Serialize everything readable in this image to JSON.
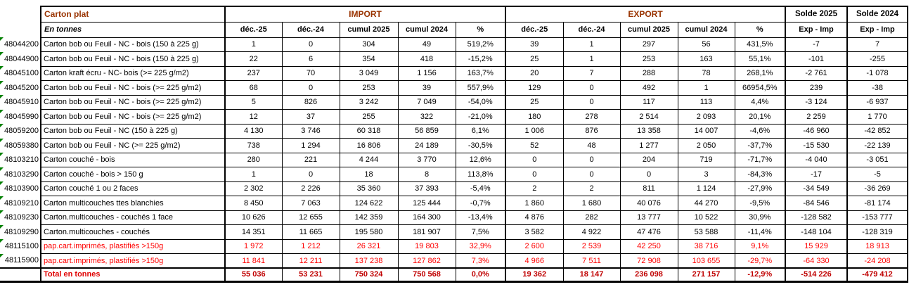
{
  "palette": {
    "header_text": "#993300",
    "red_row_text": "#FF0000",
    "total_label_text": "#E00000",
    "total_value_text": "#C00000",
    "border": "#000000",
    "error_indicator_green": "#008000",
    "background": "#FFFFFF"
  },
  "table": {
    "title": "Carton plat",
    "subtitle": "En tonnes",
    "sections": {
      "import": "IMPORT",
      "export": "EXPORT",
      "solde2025": "Solde 2025",
      "solde2024": "Solde 2024"
    },
    "sub_headers": {
      "dec25": "déc.-25",
      "dec24": "déc.-24",
      "cumul2025": "cumul 2025",
      "cumul2024": "cumul 2024",
      "pct": "%",
      "exp_imp": "Exp - Imp"
    },
    "rows": [
      {
        "code": "48044200",
        "label": "Carton bob ou Feuil - NC - bois (150 à 225 g)",
        "import": [
          "1",
          "0",
          "304",
          "49",
          "519,2%"
        ],
        "export": [
          "39",
          "1",
          "297",
          "56",
          "431,5%"
        ],
        "solde2025": "-7",
        "solde2024": "7",
        "style": "normal"
      },
      {
        "code": "48044900",
        "label": "Carton bob ou Feuil - NC - bois (150 à 225 g)",
        "import": [
          "22",
          "6",
          "354",
          "418",
          "-15,2%"
        ],
        "export": [
          "25",
          "1",
          "253",
          "163",
          "55,1%"
        ],
        "solde2025": "-101",
        "solde2024": "-255",
        "style": "normal"
      },
      {
        "code": "48045100",
        "label": "Carton kraft écru - NC- bois  (>= 225 g/m2)",
        "import": [
          "237",
          "70",
          "3 049",
          "1 156",
          "163,7%"
        ],
        "export": [
          "20",
          "7",
          "288",
          "78",
          "268,1%"
        ],
        "solde2025": "-2 761",
        "solde2024": "-1 078",
        "style": "normal"
      },
      {
        "code": "48045200",
        "label": "Carton bob ou Feuil - NC - bois (>= 225 g/m2)",
        "import": [
          "68",
          "0",
          "253",
          "39",
          "557,9%"
        ],
        "export": [
          "129",
          "0",
          "492",
          "1",
          "66954,5%"
        ],
        "solde2025": "239",
        "solde2024": "-38",
        "style": "normal"
      },
      {
        "code": "48045910",
        "label": "Carton bob ou Feuil - NC - bois (>= 225 g/m2)",
        "import": [
          "5",
          "826",
          "3 242",
          "7 049",
          "-54,0%"
        ],
        "export": [
          "25",
          "0",
          "117",
          "113",
          "4,4%"
        ],
        "solde2025": "-3 124",
        "solde2024": "-6 937",
        "style": "normal"
      },
      {
        "code": "48045990",
        "label": "Carton bob ou Feuil - NC - bois (>= 225 g/m2)",
        "import": [
          "12",
          "37",
          "255",
          "322",
          "-21,0%"
        ],
        "export": [
          "180",
          "278",
          "2 514",
          "2 093",
          "20,1%"
        ],
        "solde2025": "2 259",
        "solde2024": "1 770",
        "style": "normal"
      },
      {
        "code": "48059200",
        "label": "Carton bob ou Feuil - NC (150 à 225 g)",
        "import": [
          "4 130",
          "3 746",
          "60 318",
          "56 859",
          "6,1%"
        ],
        "export": [
          "1 006",
          "876",
          "13 358",
          "14 007",
          "-4,6%"
        ],
        "solde2025": "-46 960",
        "solde2024": "-42 852",
        "style": "normal"
      },
      {
        "code": "48059380",
        "label": "Carton bob ou Feuil - NC (>= 225 g/m2)",
        "import": [
          "738",
          "1 294",
          "16 806",
          "24 189",
          "-30,5%"
        ],
        "export": [
          "52",
          "48",
          "1 277",
          "2 050",
          "-37,7%"
        ],
        "solde2025": "-15 530",
        "solde2024": "-22 139",
        "style": "normal"
      },
      {
        "code": "48103210",
        "label": "Carton couché - bois",
        "import": [
          "280",
          "221",
          "4 244",
          "3 770",
          "12,6%"
        ],
        "export": [
          "0",
          "0",
          "204",
          "719",
          "-71,7%"
        ],
        "solde2025": "-4 040",
        "solde2024": "-3 051",
        "style": "normal"
      },
      {
        "code": "48103290",
        "label": "Carton couché - bois > 150 g",
        "import": [
          "1",
          "0",
          "18",
          "8",
          "113,8%"
        ],
        "export": [
          "0",
          "0",
          "0",
          "3",
          "-84,3%"
        ],
        "solde2025": "-17",
        "solde2024": "-5",
        "style": "normal"
      },
      {
        "code": "48103900",
        "label": "Carton couché  1 ou 2 faces",
        "import": [
          "2 302",
          "2 226",
          "35 360",
          "37 393",
          "-5,4%"
        ],
        "export": [
          "2",
          "2",
          "811",
          "1 124",
          "-27,9%"
        ],
        "solde2025": "-34 549",
        "solde2024": "-36 269",
        "style": "normal"
      },
      {
        "code": "48109210",
        "label": "Carton multicouches ttes blanchies",
        "import": [
          "8 450",
          "7 063",
          "124 622",
          "125 444",
          "-0,7%"
        ],
        "export": [
          "1 860",
          "1 680",
          "40 076",
          "44 270",
          "-9,5%"
        ],
        "solde2025": "-84 546",
        "solde2024": "-81 174",
        "style": "normal"
      },
      {
        "code": "48109230",
        "label": "Carton.multicouches - couchés 1 face",
        "import": [
          "10 626",
          "12 655",
          "142 359",
          "164 300",
          "-13,4%"
        ],
        "export": [
          "4 876",
          "282",
          "13 777",
          "10 522",
          "30,9%"
        ],
        "solde2025": "-128 582",
        "solde2024": "-153 777",
        "style": "normal"
      },
      {
        "code": "48109290",
        "label": "Carton.multicouches - couchés",
        "import": [
          "14 351",
          "11 665",
          "195 580",
          "181 907",
          "7,5%"
        ],
        "export": [
          "3 582",
          "4 922",
          "47 476",
          "53 588",
          "-11,4%"
        ],
        "solde2025": "-148 104",
        "solde2024": "-128 319",
        "style": "normal"
      },
      {
        "code": "48115100",
        "label": "pap.cart.imprimés, plastifiés >150g",
        "import": [
          "1 972",
          "1 212",
          "26 321",
          "19 803",
          "32,9%"
        ],
        "export": [
          "2 600",
          "2 539",
          "42 250",
          "38 716",
          "9,1%"
        ],
        "solde2025": "15 929",
        "solde2024": "18 913",
        "style": "red"
      },
      {
        "code": "48115900",
        "label": "pap.cart.imprimés, plastifiés >150g",
        "import": [
          "11 841",
          "12 211",
          "137 238",
          "127 862",
          "7,3%"
        ],
        "export": [
          "4 966",
          "7 511",
          "72 908",
          "103 655",
          "-29,7%"
        ],
        "solde2025": "-64 330",
        "solde2024": "-24 208",
        "style": "red"
      }
    ],
    "total": {
      "label": "Total en tonnes",
      "import": [
        "55 036",
        "53 231",
        "750 324",
        "750 568",
        "0,0%"
      ],
      "export": [
        "19 362",
        "18 147",
        "236 098",
        "271 157",
        "-12,9%"
      ],
      "solde2025": "-514 226",
      "solde2024": "-479 412"
    }
  }
}
